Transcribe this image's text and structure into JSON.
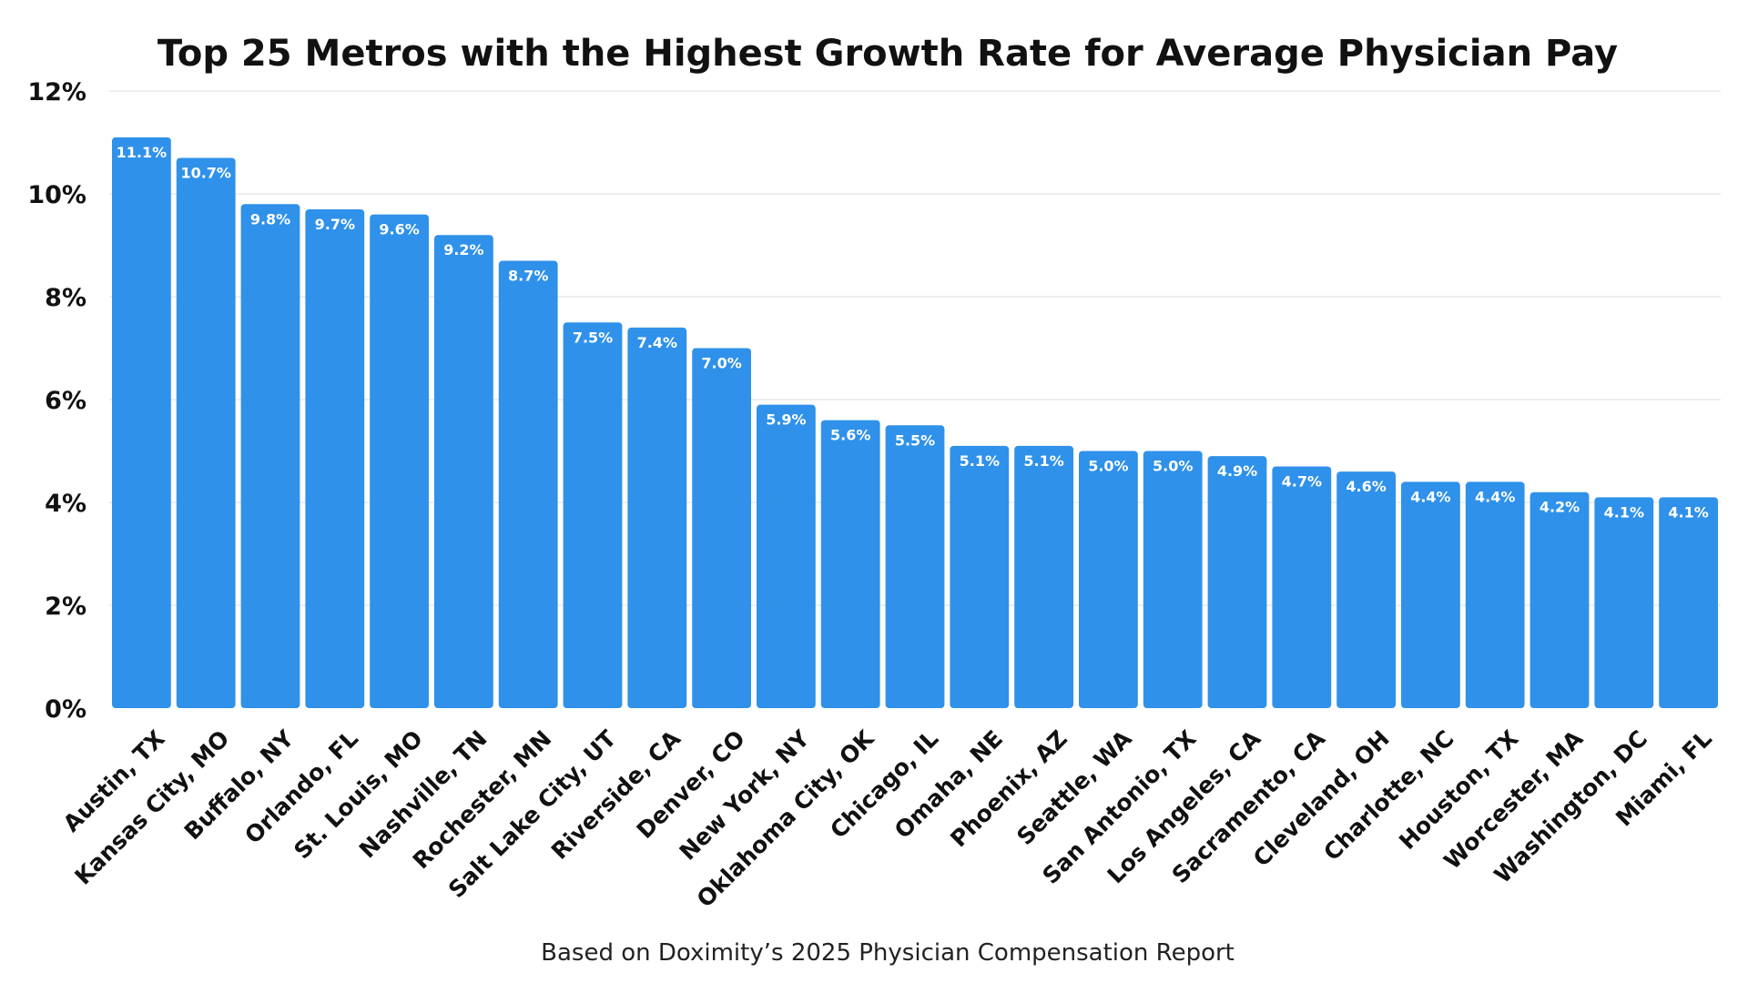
{
  "chart_data": {
    "type": "bar",
    "title": "Top 25 Metros with the Highest Growth Rate for Average Physician Pay",
    "subtitle": "Based on Doximity’s 2025 Physician Compensation Report",
    "xlabel": "",
    "ylabel": "",
    "ylim": [
      0,
      12
    ],
    "yticks": [
      "0%",
      "2%",
      "4%",
      "6%",
      "8%",
      "10%",
      "12%"
    ],
    "grid": true,
    "bar_color": "#2f91ea",
    "categories": [
      "Austin, TX",
      "Kansas City, MO",
      "Buffalo, NY",
      "Orlando, FL",
      "St. Louis, MO",
      "Nashville, TN",
      "Rochester, MN",
      "Salt Lake City, UT",
      "Riverside, CA",
      "Denver, CO",
      "New York, NY",
      "Oklahoma City, OK",
      "Chicago, IL",
      "Omaha, NE",
      "Phoenix, AZ",
      "Seattle, WA",
      "San Antonio, TX",
      "Los Angeles, CA",
      "Sacramento, CA",
      "Cleveland, OH",
      "Charlotte, NC",
      "Houston, TX",
      "Worcester, MA",
      "Washington, DC",
      "Miami, FL"
    ],
    "values": [
      11.1,
      10.7,
      9.8,
      9.7,
      9.6,
      9.2,
      8.7,
      7.5,
      7.4,
      7.0,
      5.9,
      5.6,
      5.5,
      5.1,
      5.1,
      5.0,
      5.0,
      4.9,
      4.7,
      4.6,
      4.4,
      4.4,
      4.2,
      4.1,
      4.1
    ],
    "data_labels": [
      "11.1%",
      "10.7%",
      "9.8%",
      "9.7%",
      "9.6%",
      "9.2%",
      "8.7%",
      "7.5%",
      "7.4%",
      "7.0%",
      "5.9%",
      "5.6%",
      "5.5%",
      "5.1%",
      "5.1%",
      "5.0%",
      "5.0%",
      "4.9%",
      "4.7%",
      "4.6%",
      "4.4%",
      "4.4%",
      "4.2%",
      "4.1%",
      "4.1%"
    ]
  }
}
